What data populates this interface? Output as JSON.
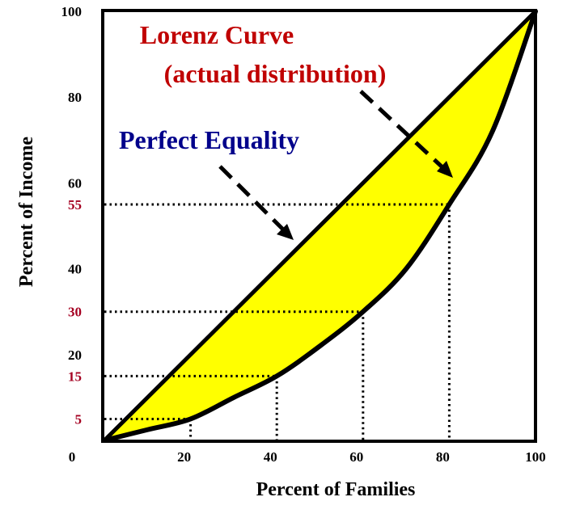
{
  "chart_data": {
    "type": "line",
    "title": "",
    "xlabel": "Percent of Families",
    "ylabel": "Percent of Income",
    "xlim": [
      0,
      100
    ],
    "ylim": [
      0,
      100
    ],
    "x_ticks": [
      {
        "value": 0,
        "label": "0"
      },
      {
        "value": 20,
        "label": "20"
      },
      {
        "value": 40,
        "label": "40"
      },
      {
        "value": 60,
        "label": "60"
      },
      {
        "value": 80,
        "label": "80"
      },
      {
        "value": 100,
        "label": "100"
      }
    ],
    "y_ticks": [
      {
        "value": 100,
        "label": "100",
        "highlight": false
      },
      {
        "value": 80,
        "label": "80",
        "highlight": false
      },
      {
        "value": 60,
        "label": "60",
        "highlight": false
      },
      {
        "value": 55,
        "label": "55",
        "highlight": true
      },
      {
        "value": 40,
        "label": "40",
        "highlight": false
      },
      {
        "value": 30,
        "label": "30",
        "highlight": true
      },
      {
        "value": 20,
        "label": "20",
        "highlight": false
      },
      {
        "value": 15,
        "label": "15",
        "highlight": true
      },
      {
        "value": 5,
        "label": "5",
        "highlight": true
      }
    ],
    "series": [
      {
        "name": "Perfect Equality",
        "x": [
          0,
          100
        ],
        "y": [
          0,
          100
        ]
      },
      {
        "name": "Lorenz Curve (actual distribution)",
        "x": [
          0,
          10,
          20,
          30,
          40,
          50,
          60,
          70,
          80,
          90,
          100
        ],
        "y": [
          0,
          2.5,
          5,
          10,
          15,
          22,
          30,
          40,
          55,
          72,
          100
        ]
      }
    ],
    "reference_points": [
      {
        "x": 20,
        "y": 5
      },
      {
        "x": 40,
        "y": 15
      },
      {
        "x": 60,
        "y": 30
      },
      {
        "x": 80,
        "y": 55
      }
    ],
    "annotations": [
      {
        "id": "lorenz",
        "lines": [
          "Lorenz Curve",
          "(actual distribution)"
        ]
      },
      {
        "id": "equality",
        "lines": [
          "Perfect Equality"
        ]
      }
    ],
    "fill": "area between curves"
  },
  "colors": {
    "fill": "#FFFF00",
    "highlight_tick": "#A50021",
    "lorenz_label": "#C00000",
    "equality_label": "#00008B",
    "line": "#000000"
  }
}
